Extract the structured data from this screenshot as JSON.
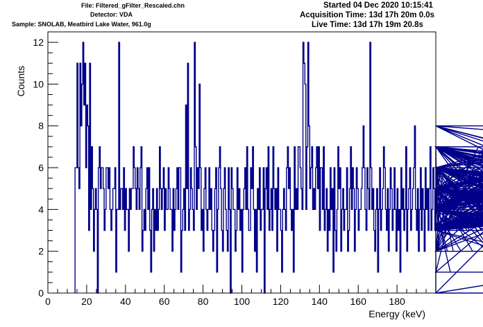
{
  "header": {
    "file": "File: Filtered_gFilter_Rescaled.chn",
    "detector": "Detector: VDA",
    "sample": "Sample: SNOLAB, Meatbird Lake Water, 961.0g",
    "started": "Started 04 Dec 2020 10:15:41",
    "acquisition_time": "Acquisition Time: 13d 17h 20m 0.0s",
    "live_time": "Live Time: 13d 17h 19m 20.8s"
  },
  "colors": {
    "histogram": "#00008b",
    "axes": "#000000",
    "background": "#ffffff"
  },
  "chart_data": {
    "type": "histogram",
    "title": "",
    "xlabel": "Energy (keV)",
    "ylabel": "Counts",
    "xlim": [
      0,
      200
    ],
    "ylim": [
      0,
      12.5
    ],
    "x_ticks": [
      0,
      20,
      40,
      60,
      80,
      100,
      120,
      140,
      160,
      180
    ],
    "y_ticks": [
      0,
      2,
      4,
      6,
      8,
      10,
      12
    ],
    "grid": false,
    "legend": "none",
    "bin_width_keV": 0.5,
    "x_start_keV": 14,
    "counts": [
      6,
      6,
      11,
      6,
      5,
      11,
      8,
      10,
      12,
      9,
      11,
      6,
      9,
      8,
      3,
      11,
      4,
      7,
      5,
      2,
      4,
      5,
      4,
      0,
      6,
      7,
      5,
      6,
      6,
      5,
      3,
      4,
      6,
      6,
      5,
      6,
      4,
      3,
      4,
      5,
      5,
      6,
      1,
      4,
      4,
      12,
      4,
      5,
      5,
      4,
      6,
      3,
      5,
      4,
      4,
      2,
      5,
      4,
      5,
      5,
      7,
      6,
      5,
      4,
      6,
      5,
      4,
      6,
      7,
      2,
      3,
      4,
      3,
      5,
      6,
      4,
      6,
      3,
      1,
      4,
      5,
      2,
      4,
      3,
      5,
      3,
      4,
      7,
      5,
      4,
      5,
      6,
      3,
      5,
      4,
      4,
      6,
      5,
      4,
      4,
      2,
      5,
      3,
      4,
      5,
      6,
      4,
      6,
      6,
      1,
      3,
      4,
      5,
      3,
      9,
      5,
      11,
      3,
      4,
      6,
      5,
      4,
      3,
      12,
      7,
      4,
      6,
      5,
      10,
      6,
      3,
      4,
      2,
      5,
      6,
      4,
      3,
      4,
      6,
      4,
      5,
      3,
      2,
      3,
      5,
      6,
      1,
      4,
      6,
      7,
      5,
      3,
      2,
      5,
      6,
      4,
      3,
      2,
      6,
      4,
      0,
      6,
      5,
      4,
      4,
      2,
      3,
      6,
      4,
      5,
      3,
      4,
      1,
      4,
      5,
      6,
      4,
      7,
      4,
      3,
      3,
      6,
      5,
      7,
      4,
      2,
      4,
      1,
      5,
      4,
      6,
      3,
      4,
      4,
      6,
      0,
      5,
      6,
      4,
      7,
      3,
      4,
      5,
      3,
      7,
      5,
      4,
      5,
      2,
      6,
      4,
      4,
      3,
      1,
      4,
      5,
      4,
      3,
      6,
      7,
      5,
      6,
      4,
      3,
      4,
      1,
      7,
      4,
      5,
      4,
      7,
      7,
      6,
      5,
      4,
      12,
      11,
      10,
      4,
      7,
      12,
      8,
      5,
      6,
      7,
      4,
      5,
      4,
      6,
      7,
      5,
      7,
      3,
      6,
      6,
      4,
      7,
      3,
      4,
      5,
      2,
      4,
      3,
      6,
      4,
      5,
      1,
      6,
      3,
      2,
      4,
      7,
      5,
      6,
      2,
      4,
      5,
      3,
      4,
      4,
      6,
      2,
      3,
      5,
      7,
      4,
      6,
      5,
      2,
      4,
      6,
      5,
      3,
      4,
      4,
      5,
      6,
      8,
      6,
      4,
      3,
      6,
      5,
      4,
      12,
      6,
      4,
      5,
      3,
      2,
      4,
      5,
      1,
      4,
      6,
      3,
      4,
      5,
      7,
      6,
      4,
      3,
      5,
      2,
      4,
      6,
      5,
      3,
      4,
      6,
      4,
      2,
      5,
      3,
      4,
      1,
      6,
      4,
      5,
      3,
      4,
      7,
      2,
      4,
      5,
      6,
      3,
      4,
      5,
      6,
      8,
      4,
      3,
      5,
      2,
      4,
      6,
      3,
      5,
      4,
      2,
      6,
      4,
      5,
      3,
      5,
      7,
      3,
      4,
      6,
      5,
      3,
      7,
      4,
      5,
      2,
      4,
      6,
      3,
      5,
      4,
      6,
      3,
      4,
      2,
      5,
      4,
      1,
      4,
      6,
      2,
      5,
      4,
      6,
      3,
      4,
      5,
      4,
      2,
      6,
      4,
      3,
      5,
      6,
      3,
      4,
      5,
      3,
      4,
      5,
      2,
      6,
      4,
      4,
      5,
      3,
      7,
      6,
      4,
      5,
      3,
      6,
      4,
      7,
      5,
      4,
      2,
      6,
      3,
      5,
      4,
      6,
      5,
      7,
      3,
      4,
      5,
      6,
      3,
      2,
      5,
      4,
      7,
      4,
      3,
      6,
      5,
      1,
      4,
      6,
      7,
      3,
      5,
      4,
      3,
      5,
      6,
      0,
      4,
      5,
      6,
      3,
      4,
      5,
      7,
      6,
      4,
      3,
      5,
      6,
      4,
      7,
      5,
      3,
      6,
      4,
      2,
      5,
      6,
      4,
      3,
      5,
      6,
      7,
      4,
      3,
      5,
      2,
      4,
      6,
      5,
      3,
      4,
      7,
      5,
      6,
      3,
      4,
      5,
      6,
      4,
      8,
      5,
      3,
      4,
      6,
      5,
      4,
      7,
      3,
      6,
      5,
      4,
      3,
      7,
      6,
      5,
      4,
      3,
      5,
      6,
      4,
      7,
      5,
      3,
      6,
      4,
      8,
      5,
      3,
      4,
      7,
      6,
      5,
      4,
      3,
      6,
      5,
      4,
      7,
      3,
      6,
      5,
      4,
      3,
      6,
      7,
      5,
      4,
      6,
      5,
      3,
      4,
      6,
      5,
      4,
      7,
      6,
      5,
      3,
      4,
      6,
      7,
      5,
      4,
      6,
      3,
      5,
      4,
      6,
      5,
      7,
      4,
      3,
      6,
      5,
      4,
      6,
      7,
      5,
      3,
      4,
      6,
      5,
      4,
      7,
      3,
      5,
      6,
      4,
      5,
      3,
      6,
      4,
      5,
      7,
      3,
      4,
      6,
      5,
      4,
      3,
      5,
      6,
      4,
      5,
      3,
      6,
      4,
      5,
      7,
      6,
      4,
      5,
      3,
      6,
      5,
      4,
      8,
      5,
      4,
      6,
      3,
      5,
      4,
      6,
      8,
      5,
      3,
      6,
      4,
      5,
      6,
      3,
      4,
      5,
      6,
      3,
      0,
      2,
      8,
      4,
      6,
      3,
      5,
      4,
      7,
      3,
      6,
      4,
      5,
      8,
      7,
      4
    ]
  }
}
